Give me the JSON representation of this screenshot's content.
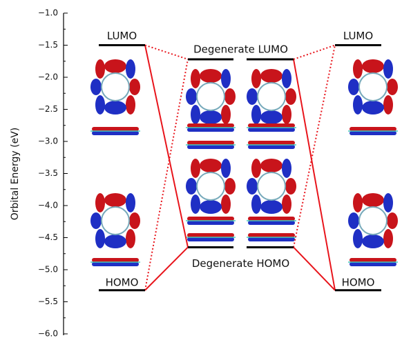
{
  "chart_data": {
    "type": "energy-levels",
    "ylabel": "Orbital Energy (eV)",
    "ylim": [
      -6.0,
      -1.0
    ],
    "yticks": [
      {
        "value": -1.0,
        "label": "−1.0"
      },
      {
        "value": -1.5,
        "label": "−1.5"
      },
      {
        "value": -2.0,
        "label": "−2.0"
      },
      {
        "value": -2.5,
        "label": "−2.5"
      },
      {
        "value": -3.0,
        "label": "−3.0"
      },
      {
        "value": -3.5,
        "label": "−3.5"
      },
      {
        "value": -4.0,
        "label": "−4.0"
      },
      {
        "value": -4.5,
        "label": "−4.5"
      },
      {
        "value": -5.0,
        "label": "−5.0"
      },
      {
        "value": -5.5,
        "label": "−5.5"
      },
      {
        "value": -6.0,
        "label": "−6.0"
      }
    ],
    "level_color": "#000000",
    "connector_color": "#e8141b",
    "columns": [
      {
        "lumo": {
          "label": "LUMO",
          "value": -1.5
        },
        "homo": {
          "label": "HOMO",
          "value": -5.32
        }
      },
      {
        "lumo": {
          "label": "Degenerate LUMO",
          "value": -1.72
        },
        "homo": {
          "label": "Degenerate HOMO",
          "value": -4.65
        }
      },
      {
        "lumo": {
          "label": "LUMO",
          "value": -1.5
        },
        "homo": {
          "label": "HOMO",
          "value": -5.32
        }
      }
    ]
  }
}
